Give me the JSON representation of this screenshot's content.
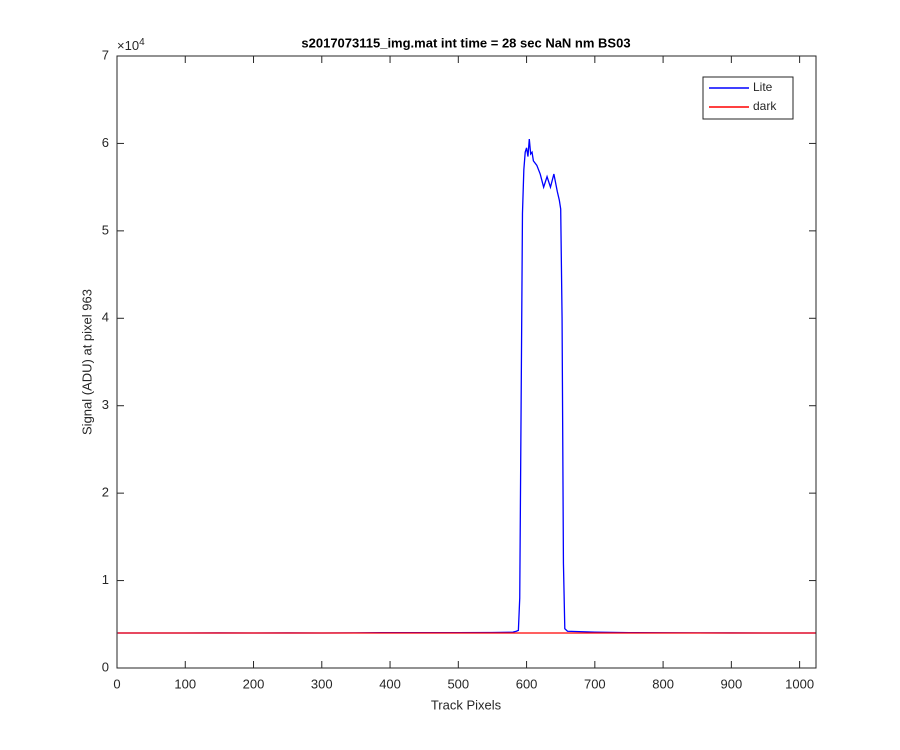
{
  "chart_data": {
    "type": "line",
    "title": "s2017073115_img.mat int time = 28 sec  NaN nm BS03",
    "x_label": "Track Pixels",
    "y_label": "Signal (ADU) at pixel 963",
    "y_exponent": {
      "base": "×10",
      "power": "4"
    },
    "x": [
      1,
      50,
      100,
      150,
      200,
      250,
      300,
      350,
      400,
      450,
      500,
      550,
      580,
      585,
      588,
      590,
      592,
      594,
      596,
      598,
      600,
      602,
      604,
      606,
      608,
      610,
      615,
      620,
      625,
      630,
      635,
      640,
      645,
      648,
      650,
      652,
      654,
      656,
      660,
      700,
      750,
      800,
      850,
      900,
      950,
      1000,
      1024
    ],
    "series": [
      {
        "name": "Lite",
        "color": "#0000ff",
        "values": [
          4000,
          4000,
          4000,
          4010,
          4000,
          4010,
          4000,
          4020,
          4050,
          4040,
          4050,
          4060,
          4100,
          4200,
          4300,
          8000,
          30000,
          52000,
          57000,
          59000,
          59500,
          58500,
          60500,
          58800,
          59000,
          58000,
          57500,
          56500,
          55000,
          56200,
          55000,
          56500,
          54500,
          53500,
          52500,
          40000,
          12000,
          4500,
          4200,
          4100,
          4050,
          4030,
          4020,
          4010,
          4000,
          4000,
          4000
        ]
      },
      {
        "name": "dark",
        "color": "#ff0000",
        "values": [
          4000,
          4000,
          4000,
          4000,
          4000,
          4000,
          4000,
          4000,
          4000,
          4000,
          4000,
          4000,
          4000,
          4000,
          4000,
          4000,
          4000,
          4000,
          4000,
          4000,
          4000,
          4000,
          4000,
          4000,
          4000,
          4000,
          4000,
          4000,
          4000,
          4000,
          4000,
          4000,
          4000,
          4000,
          4000,
          4000,
          4000,
          4000,
          4000,
          4000,
          4000,
          4000,
          4000,
          4000,
          4000,
          4000,
          4000
        ]
      }
    ],
    "xlim": [
      0,
      1024
    ],
    "xticks": [
      0,
      100,
      200,
      300,
      400,
      500,
      600,
      700,
      800,
      900,
      1000
    ],
    "ylim": [
      0,
      70000
    ],
    "yticks": [
      {
        "value": 0,
        "label": "0"
      },
      {
        "value": 10000,
        "label": "1"
      },
      {
        "value": 20000,
        "label": "2"
      },
      {
        "value": 30000,
        "label": "3"
      },
      {
        "value": 40000,
        "label": "4"
      },
      {
        "value": 50000,
        "label": "5"
      },
      {
        "value": 60000,
        "label": "6"
      },
      {
        "value": 70000,
        "label": "7"
      }
    ],
    "legend": "top-right",
    "grid": false
  }
}
